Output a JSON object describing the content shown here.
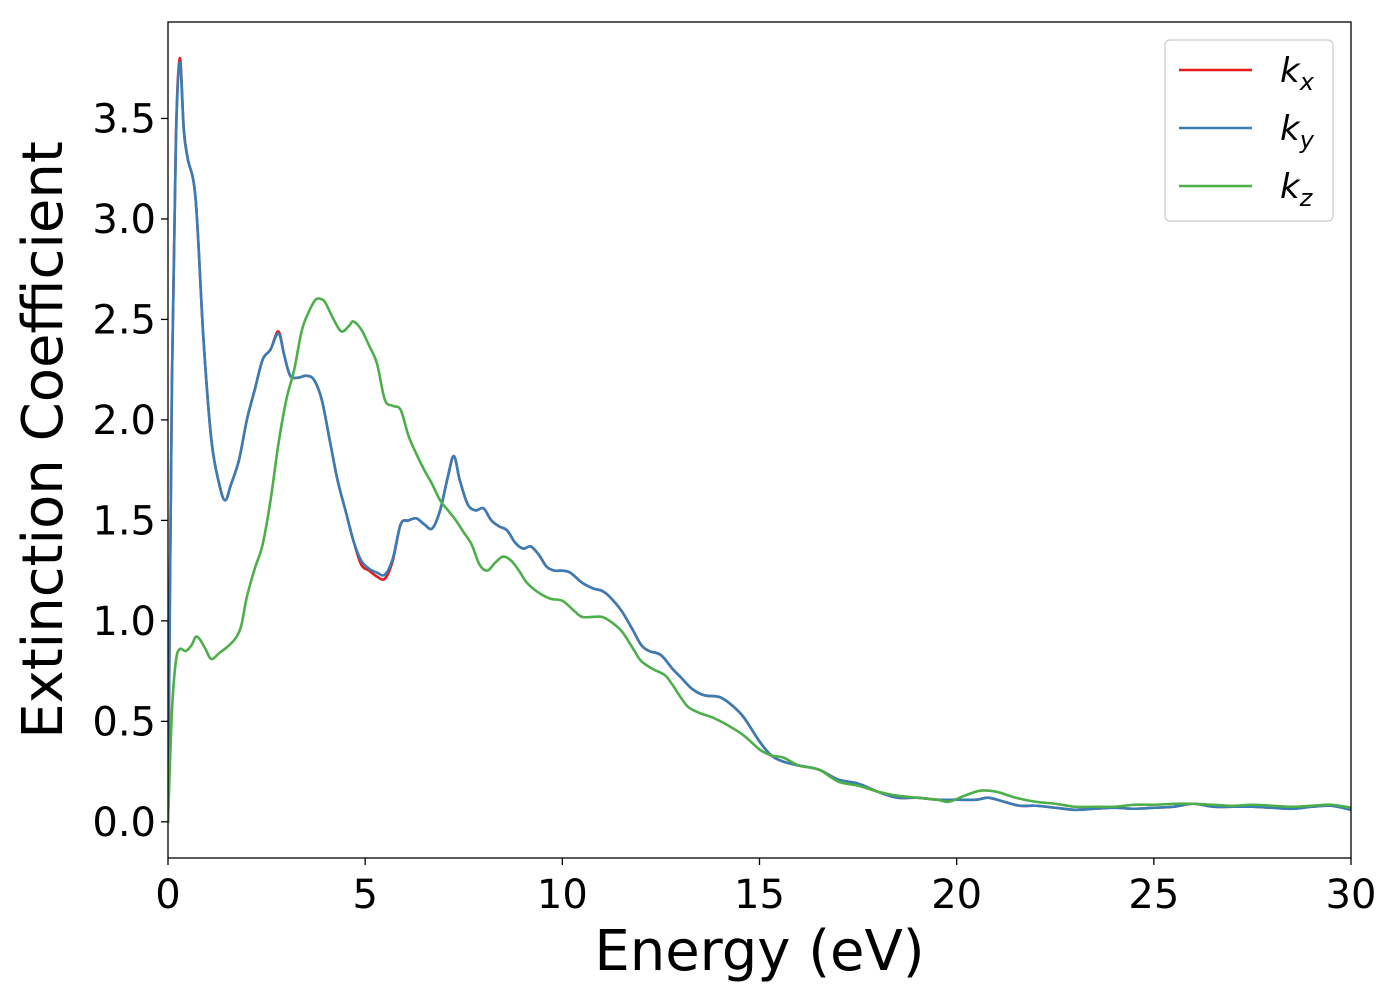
{
  "chart_data": {
    "type": "line",
    "xlabel": "Energy (eV)",
    "ylabel": "Extinction Coefficient",
    "xlim": [
      0,
      30
    ],
    "ylim": [
      -0.18,
      3.98
    ],
    "xticks": [
      0,
      5,
      10,
      15,
      20,
      25,
      30
    ],
    "xtick_labels": [
      "0",
      "5",
      "10",
      "15",
      "20",
      "25",
      "30"
    ],
    "yticks": [
      0.0,
      0.5,
      1.0,
      1.5,
      2.0,
      2.5,
      3.0,
      3.5
    ],
    "ytick_labels": [
      "0.0",
      "0.5",
      "1.0",
      "1.5",
      "2.0",
      "2.5",
      "3.0",
      "3.5"
    ],
    "grid": false,
    "legend_position": "top-right",
    "series": [
      {
        "name": "k",
        "sub": "x",
        "color": "#e41a1c",
        "x": [
          0,
          0.1,
          0.2,
          0.3,
          0.4,
          0.5,
          0.7,
          0.9,
          1.1,
          1.3,
          1.45,
          1.6,
          1.8,
          2.0,
          2.2,
          2.4,
          2.6,
          2.8,
          2.95,
          3.1,
          3.3,
          3.5,
          3.7,
          3.9,
          4.1,
          4.3,
          4.5,
          4.7,
          4.9,
          5.1,
          5.3,
          5.5,
          5.7,
          5.9,
          6.1,
          6.3,
          6.5,
          6.7,
          6.9,
          7.1,
          7.25,
          7.4,
          7.6,
          7.8,
          8.0,
          8.2,
          8.4,
          8.6,
          8.8,
          9.0,
          9.2,
          9.4,
          9.6,
          9.8,
          10.0,
          10.2,
          10.5,
          10.8,
          11.0,
          11.2,
          11.5,
          11.8,
          12.0,
          12.2,
          12.5,
          12.8,
          13.0,
          13.3,
          13.6,
          14.0,
          14.3,
          14.6,
          15.0,
          15.3,
          15.6,
          16.0,
          16.5,
          17.0,
          17.5,
          18.0,
          18.5,
          19.0,
          19.5,
          20.0,
          20.5,
          20.8,
          21.2,
          21.6,
          22.0,
          22.5,
          23.0,
          23.5,
          24.0,
          24.5,
          25.0,
          25.5,
          26.0,
          26.5,
          27.0,
          27.5,
          28.0,
          28.5,
          29.0,
          29.5,
          30.0
        ],
        "values": [
          0.0,
          2.2,
          3.4,
          3.8,
          3.45,
          3.3,
          3.1,
          2.4,
          1.9,
          1.68,
          1.6,
          1.68,
          1.8,
          2.0,
          2.15,
          2.3,
          2.35,
          2.44,
          2.32,
          2.22,
          2.21,
          2.22,
          2.2,
          2.1,
          1.9,
          1.7,
          1.55,
          1.4,
          1.28,
          1.25,
          1.22,
          1.21,
          1.3,
          1.48,
          1.5,
          1.51,
          1.48,
          1.46,
          1.55,
          1.72,
          1.82,
          1.7,
          1.58,
          1.55,
          1.56,
          1.5,
          1.47,
          1.45,
          1.39,
          1.36,
          1.37,
          1.33,
          1.27,
          1.25,
          1.25,
          1.24,
          1.19,
          1.16,
          1.15,
          1.12,
          1.05,
          0.95,
          0.88,
          0.85,
          0.83,
          0.76,
          0.72,
          0.66,
          0.63,
          0.62,
          0.58,
          0.52,
          0.4,
          0.33,
          0.3,
          0.28,
          0.26,
          0.21,
          0.19,
          0.15,
          0.12,
          0.12,
          0.11,
          0.11,
          0.11,
          0.12,
          0.1,
          0.08,
          0.08,
          0.07,
          0.06,
          0.065,
          0.07,
          0.065,
          0.07,
          0.075,
          0.09,
          0.075,
          0.075,
          0.075,
          0.07,
          0.065,
          0.075,
          0.08,
          0.06
        ]
      },
      {
        "name": "k",
        "sub": "y",
        "color": "#377eb8",
        "x": [
          0,
          0.1,
          0.2,
          0.3,
          0.4,
          0.5,
          0.7,
          0.9,
          1.1,
          1.3,
          1.45,
          1.6,
          1.8,
          2.0,
          2.2,
          2.4,
          2.6,
          2.8,
          2.95,
          3.1,
          3.3,
          3.5,
          3.7,
          3.9,
          4.1,
          4.3,
          4.5,
          4.7,
          4.9,
          5.1,
          5.3,
          5.5,
          5.7,
          5.9,
          6.1,
          6.3,
          6.5,
          6.7,
          6.9,
          7.1,
          7.25,
          7.4,
          7.6,
          7.8,
          8.0,
          8.2,
          8.4,
          8.6,
          8.8,
          9.0,
          9.2,
          9.4,
          9.6,
          9.8,
          10.0,
          10.2,
          10.5,
          10.8,
          11.0,
          11.2,
          11.5,
          11.8,
          12.0,
          12.2,
          12.5,
          12.8,
          13.0,
          13.3,
          13.6,
          14.0,
          14.3,
          14.6,
          15.0,
          15.3,
          15.6,
          16.0,
          16.5,
          17.0,
          17.5,
          18.0,
          18.5,
          19.0,
          19.5,
          20.0,
          20.5,
          20.8,
          21.2,
          21.6,
          22.0,
          22.5,
          23.0,
          23.5,
          24.0,
          24.5,
          25.0,
          25.5,
          26.0,
          26.5,
          27.0,
          27.5,
          28.0,
          28.5,
          29.0,
          29.5,
          30.0
        ],
        "values": [
          0.0,
          2.2,
          3.38,
          3.78,
          3.44,
          3.3,
          3.1,
          2.4,
          1.9,
          1.68,
          1.6,
          1.68,
          1.8,
          2.0,
          2.15,
          2.3,
          2.35,
          2.43,
          2.32,
          2.22,
          2.21,
          2.22,
          2.2,
          2.1,
          1.9,
          1.7,
          1.55,
          1.4,
          1.3,
          1.26,
          1.24,
          1.23,
          1.31,
          1.48,
          1.5,
          1.51,
          1.48,
          1.46,
          1.55,
          1.72,
          1.82,
          1.7,
          1.58,
          1.55,
          1.56,
          1.5,
          1.47,
          1.45,
          1.39,
          1.36,
          1.37,
          1.33,
          1.27,
          1.25,
          1.25,
          1.24,
          1.19,
          1.16,
          1.15,
          1.12,
          1.05,
          0.95,
          0.88,
          0.85,
          0.83,
          0.76,
          0.72,
          0.66,
          0.63,
          0.62,
          0.58,
          0.52,
          0.4,
          0.33,
          0.3,
          0.28,
          0.26,
          0.21,
          0.19,
          0.15,
          0.12,
          0.12,
          0.11,
          0.11,
          0.11,
          0.12,
          0.1,
          0.08,
          0.08,
          0.07,
          0.06,
          0.065,
          0.07,
          0.065,
          0.07,
          0.075,
          0.09,
          0.075,
          0.075,
          0.075,
          0.07,
          0.065,
          0.075,
          0.08,
          0.06
        ]
      },
      {
        "name": "k",
        "sub": "z",
        "color": "#4daf4a",
        "x": [
          0,
          0.1,
          0.2,
          0.3,
          0.45,
          0.6,
          0.7,
          0.8,
          0.95,
          1.1,
          1.3,
          1.5,
          1.7,
          1.85,
          2.0,
          2.2,
          2.4,
          2.6,
          2.8,
          3.0,
          3.2,
          3.4,
          3.6,
          3.75,
          3.9,
          4.0,
          4.2,
          4.4,
          4.6,
          4.7,
          4.9,
          5.1,
          5.3,
          5.5,
          5.7,
          5.9,
          6.1,
          6.3,
          6.5,
          6.7,
          6.9,
          7.1,
          7.3,
          7.5,
          7.7,
          7.9,
          8.1,
          8.3,
          8.5,
          8.7,
          8.9,
          9.1,
          9.4,
          9.7,
          10.0,
          10.3,
          10.5,
          10.8,
          11.0,
          11.2,
          11.5,
          11.8,
          12.0,
          12.3,
          12.6,
          12.8,
          13.0,
          13.2,
          13.5,
          13.8,
          14.2,
          14.6,
          15.0,
          15.3,
          15.6,
          16.0,
          16.5,
          17.0,
          17.5,
          18.0,
          18.5,
          19.0,
          19.5,
          19.8,
          20.2,
          20.6,
          21.0,
          21.5,
          22.0,
          22.5,
          23.0,
          23.5,
          24.0,
          24.5,
          25.0,
          25.5,
          26.0,
          26.5,
          27.0,
          27.5,
          28.0,
          28.5,
          29.0,
          29.5,
          30.0
        ],
        "values": [
          0.0,
          0.55,
          0.8,
          0.86,
          0.85,
          0.88,
          0.92,
          0.91,
          0.86,
          0.81,
          0.84,
          0.87,
          0.91,
          0.97,
          1.12,
          1.26,
          1.38,
          1.6,
          1.88,
          2.1,
          2.25,
          2.45,
          2.55,
          2.6,
          2.6,
          2.58,
          2.5,
          2.44,
          2.47,
          2.49,
          2.45,
          2.37,
          2.28,
          2.1,
          2.07,
          2.05,
          1.92,
          1.83,
          1.75,
          1.68,
          1.6,
          1.55,
          1.5,
          1.44,
          1.38,
          1.28,
          1.25,
          1.29,
          1.32,
          1.3,
          1.25,
          1.19,
          1.14,
          1.11,
          1.1,
          1.05,
          1.02,
          1.02,
          1.02,
          1.0,
          0.95,
          0.86,
          0.8,
          0.76,
          0.73,
          0.68,
          0.62,
          0.57,
          0.54,
          0.52,
          0.48,
          0.43,
          0.36,
          0.33,
          0.32,
          0.28,
          0.26,
          0.2,
          0.18,
          0.15,
          0.13,
          0.12,
          0.11,
          0.1,
          0.13,
          0.155,
          0.15,
          0.12,
          0.1,
          0.09,
          0.075,
          0.075,
          0.075,
          0.085,
          0.085,
          0.09,
          0.09,
          0.085,
          0.08,
          0.085,
          0.08,
          0.075,
          0.08,
          0.085,
          0.07
        ]
      }
    ]
  }
}
